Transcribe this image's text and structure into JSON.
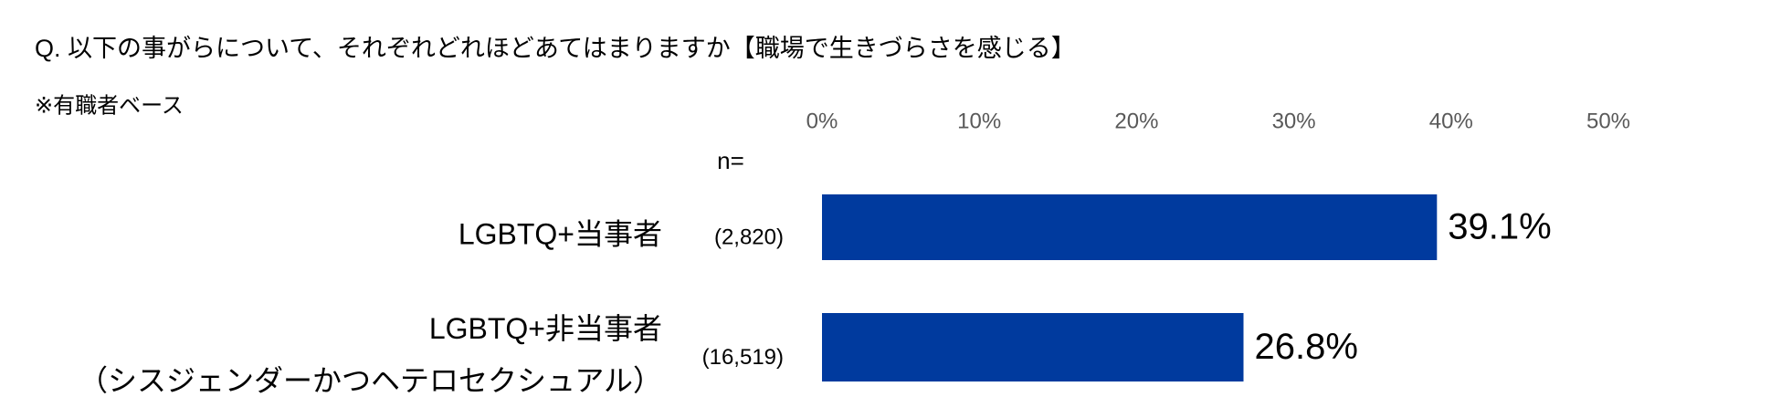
{
  "chart_data": {
    "type": "bar",
    "orientation": "horizontal",
    "title": "Q. 以下の事がらについて、それぞれどれほどあてはまりますか【職場で生きづらさを感じる】",
    "subtitle": "※有職者ベース",
    "n_label": "n=",
    "categories": [
      "LGBTQ+当事者",
      "LGBTQ+非当事者\n（シスジェンダーかつヘテロセクシュアル）"
    ],
    "n_values": [
      "(2,820)",
      "(16,519)"
    ],
    "values": [
      39.1,
      26.8
    ],
    "value_labels": [
      "39.1%",
      "26.8%"
    ],
    "color": "#003a9e",
    "xlim": [
      0,
      50
    ],
    "xticks": [
      {
        "value": 0,
        "label": "0%"
      },
      {
        "value": 10,
        "label": "10%"
      },
      {
        "value": 20,
        "label": "20%"
      },
      {
        "value": 30,
        "label": "30%"
      },
      {
        "value": 40,
        "label": "40%"
      },
      {
        "value": 50,
        "label": "50%"
      }
    ],
    "grid": false
  }
}
